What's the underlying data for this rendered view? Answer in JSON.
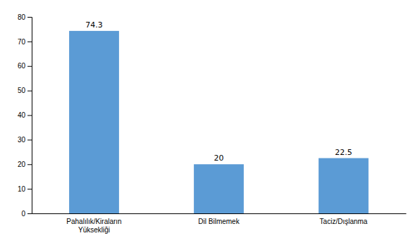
{
  "chart_data": {
    "type": "bar",
    "categories": [
      "Pahalılık/Kiraların\nYüksekliği",
      "Dil Bilmemek",
      "Taciz/Dışlanma"
    ],
    "values": [
      74.3,
      20,
      22.5
    ],
    "color": "#5B9BD5",
    "ylim": [
      0,
      80
    ],
    "yticks": [
      0,
      10,
      20,
      30,
      40,
      50,
      60,
      70,
      80
    ],
    "data_labels": true,
    "grid": false
  }
}
